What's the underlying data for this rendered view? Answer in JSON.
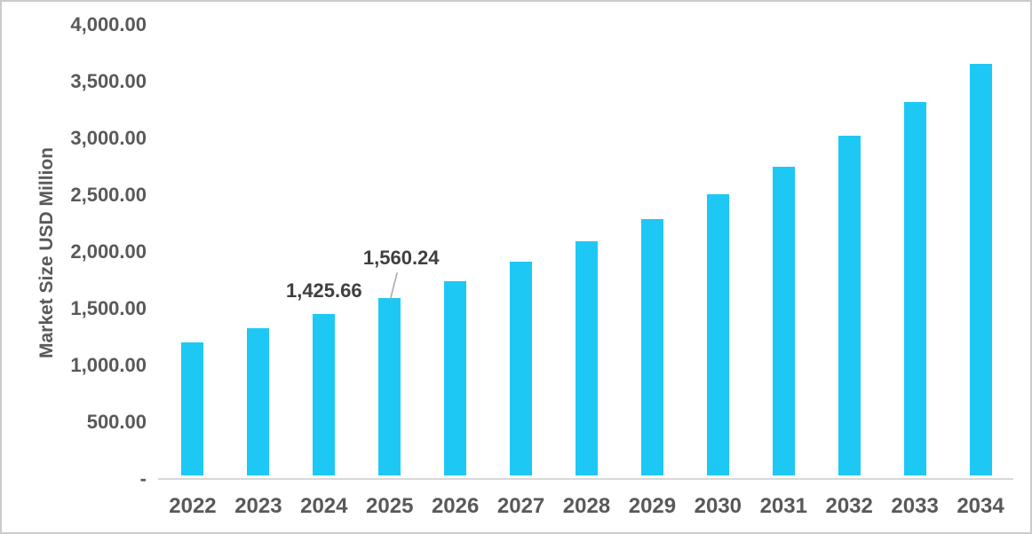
{
  "chart_data": {
    "type": "bar",
    "title": "",
    "xlabel": "",
    "ylabel": "Market Size USD Million",
    "categories": [
      "2022",
      "2023",
      "2024",
      "2025",
      "2026",
      "2027",
      "2028",
      "2029",
      "2030",
      "2031",
      "2032",
      "2033",
      "2034"
    ],
    "values": [
      1172,
      1297,
      1425.66,
      1560.24,
      1711,
      1883,
      2063,
      2258,
      2477,
      2719,
      2992,
      3289,
      3625
    ],
    "ylim": [
      0,
      4000
    ],
    "yticks": [
      {
        "value": 0,
        "label": "-"
      },
      {
        "value": 500,
        "label": "500.00"
      },
      {
        "value": 1000,
        "label": "1,000.00"
      },
      {
        "value": 1500,
        "label": "1,500.00"
      },
      {
        "value": 2000,
        "label": "2,000.00"
      },
      {
        "value": 2500,
        "label": "2,500.00"
      },
      {
        "value": 3000,
        "label": "3,000.00"
      },
      {
        "value": 3500,
        "label": "3,500.00"
      },
      {
        "value": 4000,
        "label": "4,000.00"
      }
    ],
    "grid": false,
    "legend": false,
    "data_labels": [
      {
        "category": "2024",
        "index": 2,
        "text": "1,425.66",
        "leader": false
      },
      {
        "category": "2025",
        "index": 3,
        "text": "1,560.24",
        "leader": true
      }
    ],
    "colors": {
      "bar": "#1ec8f5",
      "axis_line": "#d9d9d9",
      "tick_text": "#595959",
      "data_label_text": "#3f3f3f",
      "leader_line": "#a6a6a6",
      "border": "#cbcbcb"
    }
  }
}
